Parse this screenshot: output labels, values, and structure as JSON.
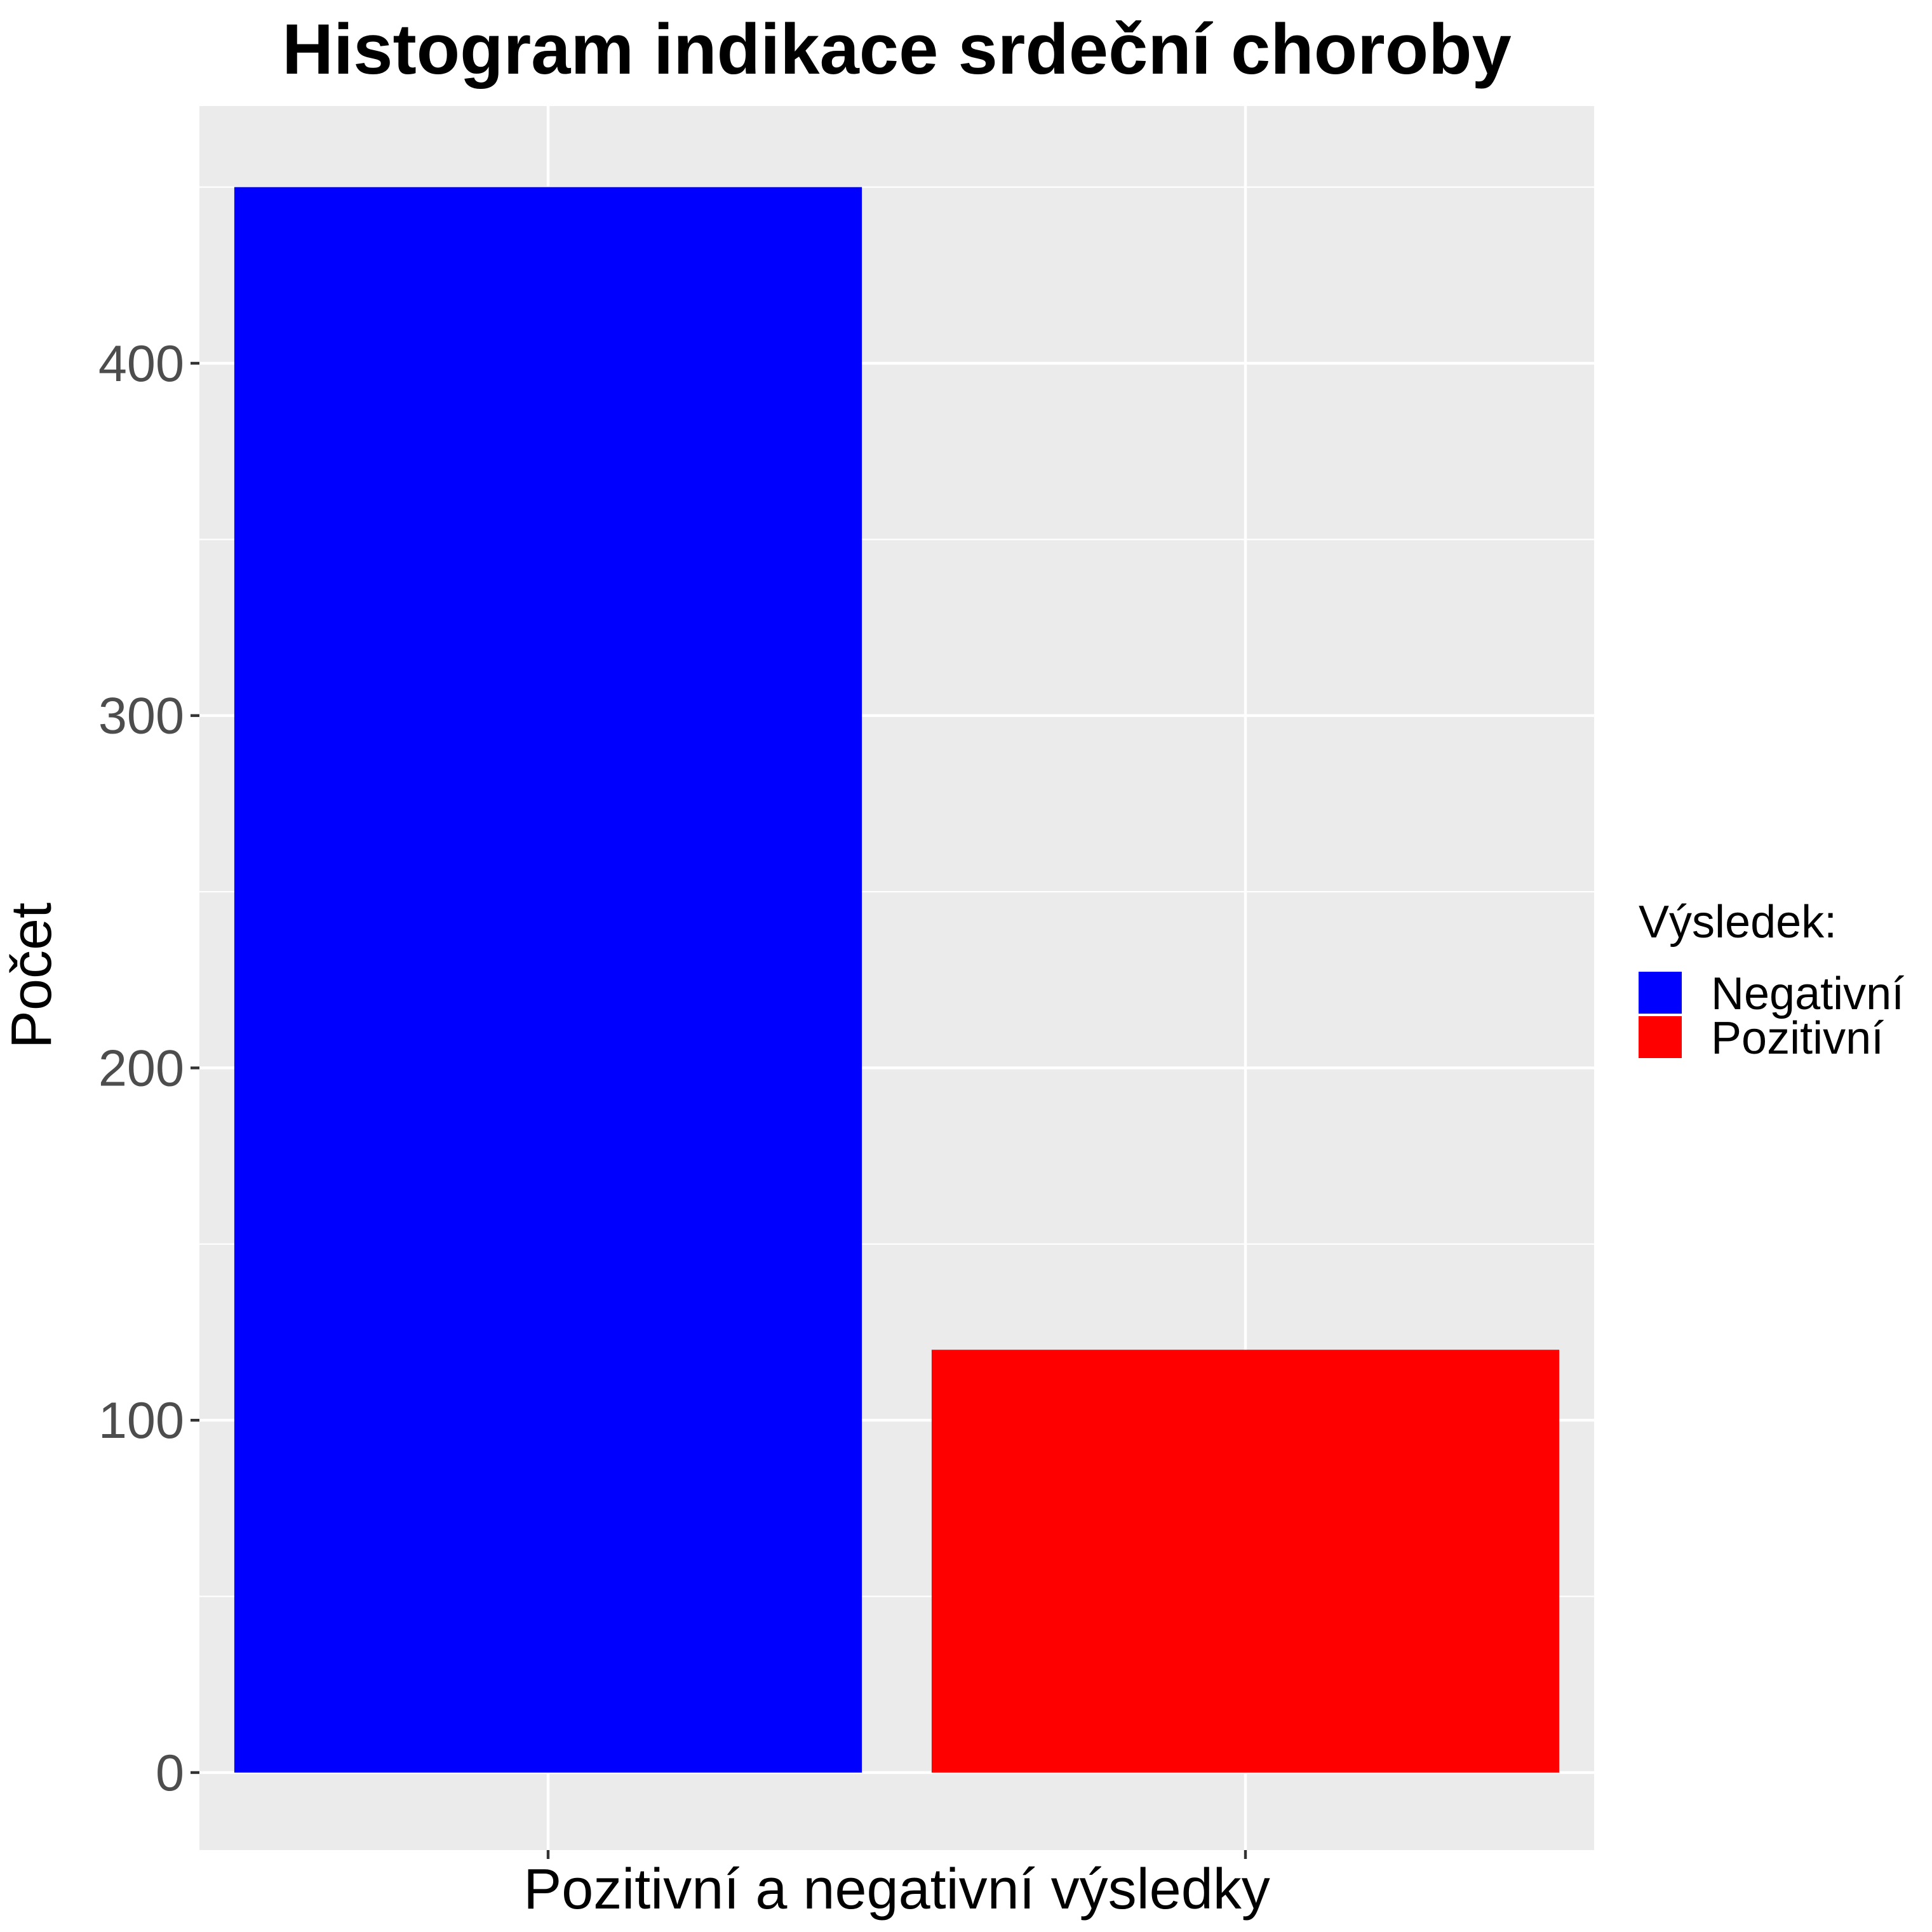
{
  "chart_data": {
    "type": "bar",
    "title": "Histogram indikace srdeční choroby",
    "xlabel": "Pozitivní a negativní výsledky",
    "ylabel": "Počet",
    "categories": [
      "Negativní",
      "Pozitivní"
    ],
    "values": [
      450,
      120
    ],
    "colors": [
      "#0000ff",
      "#ff0000"
    ],
    "ylim": [
      -22,
      473
    ],
    "yticks": [
      0,
      100,
      200,
      300,
      400
    ],
    "grid": true,
    "x_tick_labels_shown": false,
    "legend": {
      "title": "Výsledek:",
      "placement": "right",
      "entries": [
        {
          "label": "Negativní",
          "color": "#0000ff"
        },
        {
          "label": "Pozitivní",
          "color": "#ff0000"
        }
      ]
    },
    "panel_background": "#ebebeb",
    "grid_color": "#ffffff"
  }
}
